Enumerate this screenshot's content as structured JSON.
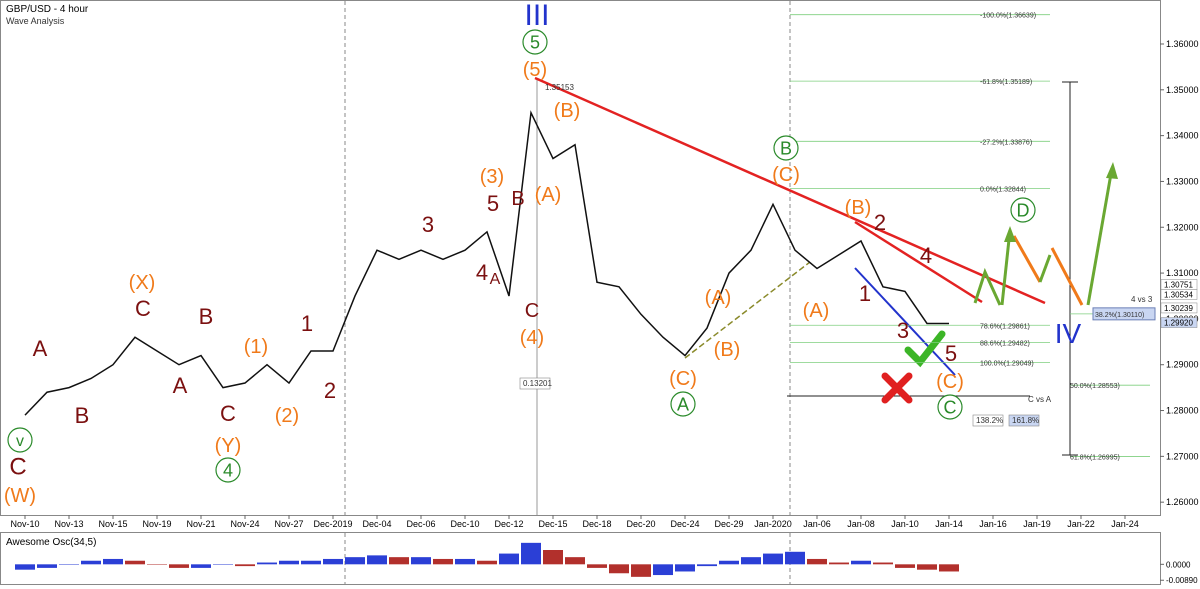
{
  "chart_data": [
    {
      "type": "line",
      "title": "GBP/USD - 4 hour",
      "subtitle": "Wave Analysis",
      "categories": [
        "Nov-10",
        null,
        "Nov-13",
        null,
        "Nov-15",
        null,
        "Nov-19",
        null,
        "Nov-21",
        null,
        "Nov-24",
        null,
        "Nov-27",
        null,
        "Dec-2019",
        null,
        "Dec-04",
        null,
        "Dec-06",
        null,
        "Dec-10",
        null,
        "Dec-12",
        null,
        "Dec-15",
        null,
        "Dec-18",
        null,
        "Dec-20",
        null,
        "Dec-24",
        null,
        "Dec-29",
        null,
        "Jan-2020",
        null,
        "Jan-06",
        null,
        "Jan-08",
        null,
        "Jan-10",
        null,
        "Jan-14",
        null,
        "Jan-16",
        null,
        "Jan-19",
        null,
        "Jan-22",
        null,
        "Jan-24"
      ],
      "series": [
        {
          "name": "GBP/USD",
          "color": "#111111",
          "values": [
            1.279,
            1.284,
            1.285,
            1.287,
            1.29,
            1.296,
            1.293,
            1.29,
            1.292,
            1.285,
            1.286,
            1.29,
            1.286,
            1.293,
            1.293,
            1.305,
            1.315,
            1.313,
            1.315,
            1.313,
            1.315,
            1.319,
            1.305,
            1.345,
            1.335,
            1.338,
            1.308,
            1.307,
            1.301,
            1.296,
            1.292,
            1.298,
            1.31,
            1.315,
            1.325,
            1.315,
            1.311,
            1.314,
            1.317,
            1.307,
            1.306,
            1.299,
            1.299,
            null,
            null,
            null,
            null,
            null,
            null,
            null,
            null
          ]
        }
      ],
      "ylim": [
        1.2572,
        1.3696
      ],
      "yticks": [
        {
          "value": 1.26,
          "label": "1.26000"
        },
        {
          "value": 1.27,
          "label": "1.27000"
        },
        {
          "value": 1.28,
          "label": "1.28000"
        },
        {
          "value": 1.29,
          "label": "1.29000"
        },
        {
          "value": 1.3,
          "label": "1.30000"
        },
        {
          "value": 1.31,
          "label": "1.31000"
        },
        {
          "value": 1.32,
          "label": "1.32000"
        },
        {
          "value": 1.33,
          "label": "1.33000"
        },
        {
          "value": 1.34,
          "label": "1.34000"
        },
        {
          "value": 1.35,
          "label": "1.35000"
        },
        {
          "value": 1.36,
          "label": "1.36000"
        }
      ],
      "price_markers": [
        {
          "value": 1.30751,
          "label": "1.30751"
        },
        {
          "value": 1.30534,
          "label": "1.30534"
        },
        {
          "value": 1.30239,
          "label": "1.30239"
        },
        {
          "value": 1.2992,
          "label": "1.29920"
        }
      ],
      "fib_levels": [
        {
          "value": 1.36639,
          "label": "-100.0%(1.36639)"
        },
        {
          "value": 1.35189,
          "label": "-61.8%(1.35189)"
        },
        {
          "value": 1.33876,
          "label": "-27.2%(1.33876)"
        },
        {
          "value": 1.32844,
          "label": "0.0%(1.32844)"
        },
        {
          "value": 1.29861,
          "label": "78.6%(1.29861)"
        },
        {
          "value": 1.29482,
          "label": "88.6%(1.29482)"
        },
        {
          "value": 1.29049,
          "label": "100.0%(1.29049)"
        },
        {
          "value": 1.3011,
          "label": "38.2%(1.30110)"
        },
        {
          "value": 1.28553,
          "label": "50.0%(1.28553)"
        },
        {
          "value": 1.26995,
          "label": "61.8%(1.26995)"
        }
      ],
      "wave_labels": [
        {
          "text": "C",
          "color": "#7b1010"
        },
        {
          "text": "(W)",
          "color": "#f07a1a"
        },
        {
          "text": "v",
          "color": "#2a8a2a",
          "circled": true
        },
        {
          "text": "A",
          "color": "#7b1010"
        },
        {
          "text": "B",
          "color": "#7b1010"
        },
        {
          "text": "(X)",
          "color": "#f07a1a"
        },
        {
          "text": "C",
          "color": "#7b1010"
        },
        {
          "text": "A",
          "color": "#7b1010"
        },
        {
          "text": "B",
          "color": "#7b1010"
        },
        {
          "text": "(1)",
          "color": "#f07a1a"
        },
        {
          "text": "C",
          "color": "#7b1010"
        },
        {
          "text": "(Y)",
          "color": "#f07a1a"
        },
        {
          "text": "4",
          "color": "#2a8a2a",
          "circled": true
        },
        {
          "text": "(2)",
          "color": "#f07a1a"
        },
        {
          "text": "1",
          "color": "#7b1010"
        },
        {
          "text": "2",
          "color": "#7b1010"
        },
        {
          "text": "3",
          "color": "#7b1010"
        },
        {
          "text": "4",
          "color": "#7b1010"
        },
        {
          "text": "A",
          "color": "#7b1010"
        },
        {
          "text": "5",
          "color": "#7b1010"
        },
        {
          "text": "(3)",
          "color": "#f07a1a"
        },
        {
          "text": "B",
          "color": "#7b1010"
        },
        {
          "text": "C",
          "color": "#7b1010"
        },
        {
          "text": "(4)",
          "color": "#f07a1a"
        },
        {
          "text": "III",
          "color": "#2233cc"
        },
        {
          "text": "5",
          "color": "#2a8a2a",
          "circled": true
        },
        {
          "text": "(5)",
          "color": "#f07a1a"
        },
        {
          "text": "(B)",
          "color": "#f07a1a"
        },
        {
          "text": "(A)",
          "color": "#f07a1a"
        },
        {
          "text": "(C)",
          "color": "#f07a1a"
        },
        {
          "text": "A",
          "color": "#2a8a2a",
          "circled": true
        },
        {
          "text": "(A)",
          "color": "#f07a1a"
        },
        {
          "text": "(B)",
          "color": "#f07a1a"
        },
        {
          "text": "B",
          "color": "#2a8a2a",
          "circled": true
        },
        {
          "text": "(C)",
          "color": "#f07a1a"
        },
        {
          "text": "(A)",
          "color": "#f07a1a"
        },
        {
          "text": "(B)",
          "color": "#f07a1a"
        },
        {
          "text": "2",
          "color": "#7b1010"
        },
        {
          "text": "1",
          "color": "#7b1010"
        },
        {
          "text": "4",
          "color": "#7b1010"
        },
        {
          "text": "3",
          "color": "#7b1010"
        },
        {
          "text": "5",
          "color": "#7b1010"
        },
        {
          "text": "(C)",
          "color": "#f07a1a"
        },
        {
          "text": "C",
          "color": "#2a8a2a",
          "circled": true
        },
        {
          "text": "D",
          "color": "#2a8a2a",
          "circled": true
        },
        {
          "text": "IV",
          "color": "#2233cc"
        }
      ],
      "annotations": [
        "1.35153",
        "0.13201",
        "4 vs 3",
        "C vs A",
        "138.2%",
        "161.8%"
      ]
    },
    {
      "type": "bar",
      "title": "Awesome Osc(34,5)",
      "up_color": "#2b3fd6",
      "down_color": "#b2302c",
      "values": [
        -0.003,
        -0.002,
        0.0,
        0.002,
        0.003,
        0.002,
        0.0,
        -0.002,
        -0.002,
        0.0,
        -0.001,
        0.001,
        0.002,
        0.002,
        0.003,
        0.004,
        0.005,
        0.004,
        0.004,
        0.003,
        0.003,
        0.002,
        0.006,
        0.012,
        0.008,
        0.004,
        -0.002,
        -0.005,
        -0.007,
        -0.006,
        -0.004,
        -0.001,
        0.002,
        0.004,
        0.006,
        0.007,
        0.003,
        0.001,
        0.002,
        0.001,
        -0.002,
        -0.003,
        -0.004,
        null,
        null,
        null,
        null,
        null,
        null,
        null,
        null
      ],
      "ylim": [
        -0.011,
        0.0175
      ],
      "yticks": [
        {
          "value": 0,
          "label": "0.0000"
        },
        {
          "value": -0.0089,
          "label": "-0.00890"
        }
      ]
    }
  ]
}
